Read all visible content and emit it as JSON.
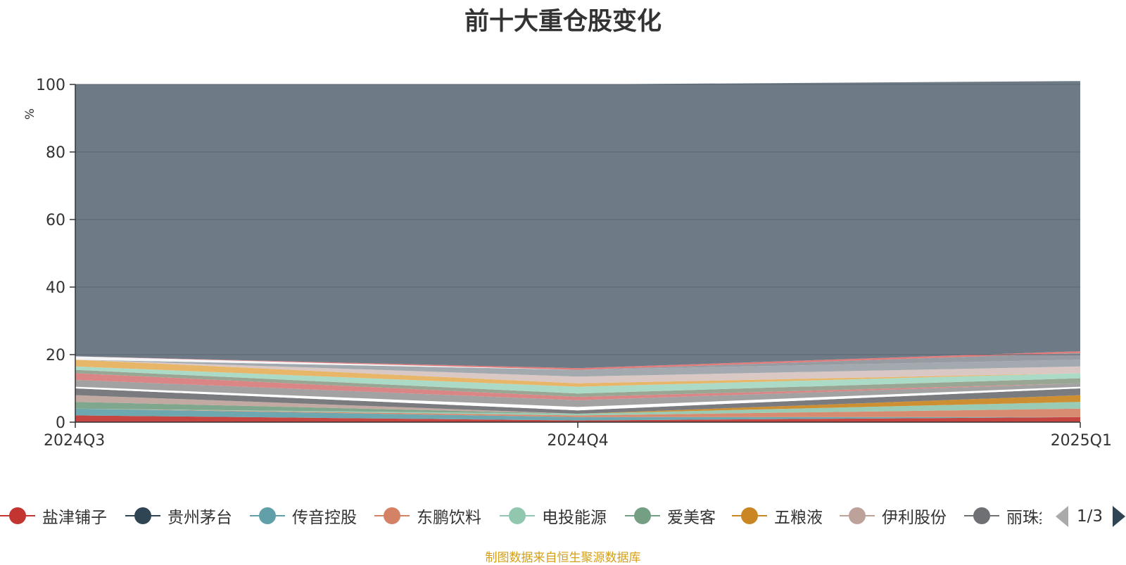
{
  "chart_data": {
    "type": "area",
    "stacked": true,
    "title": "前十大重仓股变化",
    "ylabel": "%",
    "ylim": [
      0,
      100
    ],
    "y_ticks": [
      0,
      20,
      40,
      60,
      80,
      100
    ],
    "categories": [
      "2024Q3",
      "2024Q4",
      "2025Q1"
    ],
    "series": [
      {
        "name": "盐津铺子",
        "color": "#c23531",
        "values": [
          2.0,
          0.5,
          1.5
        ]
      },
      {
        "name": "贵州茅台",
        "color": "#2f4554",
        "values": [
          0.0,
          0.0,
          0.0
        ]
      },
      {
        "name": "传音控股",
        "color": "#61a0a8",
        "values": [
          2.0,
          1.0,
          0.0
        ]
      },
      {
        "name": "东鹏饮料",
        "color": "#d48265",
        "values": [
          0.0,
          0.5,
          2.5
        ]
      },
      {
        "name": "电投能源",
        "color": "#91c7ae",
        "values": [
          0.0,
          0.5,
          2.0
        ]
      },
      {
        "name": "爱美客",
        "color": "#749f83",
        "values": [
          2.0,
          0.0,
          0.0
        ]
      },
      {
        "name": "五粮液",
        "color": "#ca8622",
        "values": [
          0.0,
          0.0,
          2.0
        ]
      },
      {
        "name": "伊利股份",
        "color": "#bda29a",
        "values": [
          2.0,
          0.0,
          0.0
        ]
      },
      {
        "name": "丽珠集团",
        "color": "#6e7074",
        "values": [
          2.0,
          1.0,
          2.0
        ]
      },
      {
        "name": "",
        "color": "#ffffff",
        "values": [
          0.5,
          1.0,
          0.5
        ]
      },
      {
        "name": "",
        "color": "#9a9a9a",
        "values": [
          2.0,
          2.0,
          1.0
        ]
      },
      {
        "name": "",
        "color": "#d87c7c",
        "values": [
          2.0,
          1.0,
          0.0
        ]
      },
      {
        "name": "",
        "color": "#919e8b",
        "values": [
          1.0,
          1.0,
          1.5
        ]
      },
      {
        "name": "",
        "color": "#a4d8c2",
        "values": [
          1.0,
          2.0,
          1.5
        ]
      },
      {
        "name": "",
        "color": "#e5b05c",
        "values": [
          2.0,
          1.0,
          0.0
        ]
      },
      {
        "name": "",
        "color": "#d7c3c0",
        "values": [
          0.0,
          2.0,
          2.0
        ]
      },
      {
        "name": "",
        "color": "#9aa3a8",
        "values": [
          0.0,
          2.0,
          2.0
        ]
      },
      {
        "name": "",
        "color": "#f3f3f3",
        "values": [
          1.0,
          0.0,
          0.0
        ]
      },
      {
        "name": "",
        "color": "#8e949a",
        "values": [
          0.0,
          0.0,
          2.0
        ]
      },
      {
        "name": "",
        "color": "#e07070",
        "values": [
          0.0,
          0.5,
          0.5
        ]
      },
      {
        "name": "",
        "color": "#6e7b86",
        "values": [
          80.5,
          84.0,
          80.0
        ]
      }
    ],
    "legend_page": "1/3",
    "source_note": "制图数据来自恒生聚源数据库"
  },
  "colors": {
    "axis": "#333333",
    "grid": "#5a6670",
    "pager_inactive": "#aaaaaa",
    "pager_active": "#2f4554",
    "ylabel": "#e03030",
    "source": "#d4a017"
  },
  "icons": {
    "prev_page": "triangle-left-icon",
    "next_page": "triangle-right-icon"
  }
}
